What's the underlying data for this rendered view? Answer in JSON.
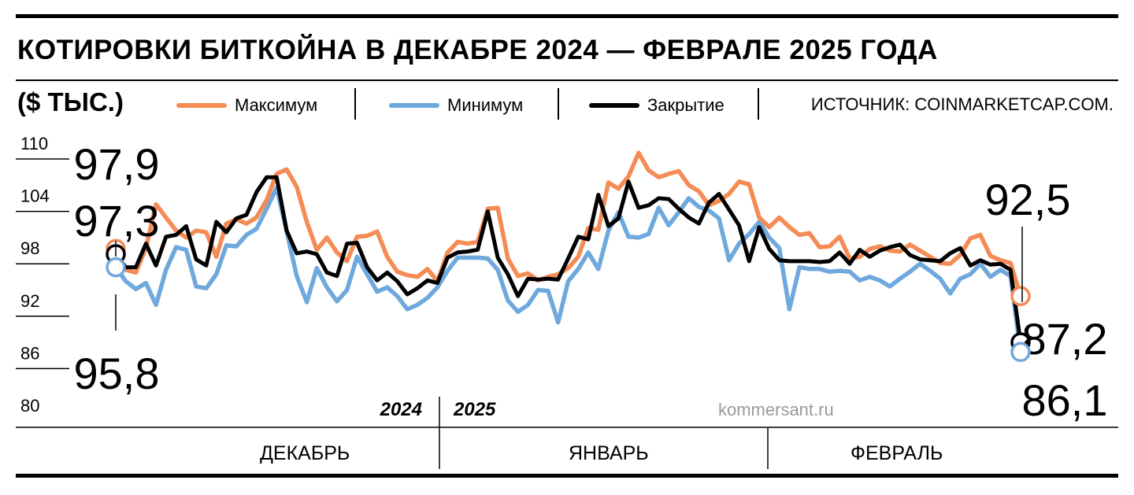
{
  "header": {
    "title": "КОТИРОВКИ БИТКОЙНА В ДЕКАБРЕ 2024 — ФЕВРАЛЕ 2025 ГОДА",
    "unit": "($ ТЫС.)",
    "source": "ИСТОЧНИК: COINMARKETCAP.COM."
  },
  "legend": [
    {
      "label": "Максимум",
      "color": "#f58b55"
    },
    {
      "label": "Минимум",
      "color": "#6fa8dc"
    },
    {
      "label": "Закрытие",
      "color": "#000000"
    }
  ],
  "watermark": "kommersant.ru",
  "years": {
    "left": "2024",
    "right": "2025"
  },
  "months": [
    "ДЕКАБРЬ",
    "ЯНВАРЬ",
    "ФЕВРАЛЬ"
  ],
  "chart_data": {
    "type": "line",
    "ylim": [
      80,
      110
    ],
    "yticks": [
      "110",
      "104",
      "98",
      "92",
      "86",
      "80"
    ],
    "grid": false,
    "legend_position": "top",
    "x_start": "2024-12-01",
    "x_end": "2025-02-24",
    "series": [
      {
        "name": "Максимум",
        "color": "#f58b55",
        "values": [
          97.9,
          95.5,
          95.2,
          98,
          103,
          101.5,
          100,
          99.2,
          100,
          99.8,
          97,
          100.8,
          101.3,
          100.8,
          101.5,
          103.5,
          106.5,
          107,
          105,
          101,
          97.8,
          99.2,
          97.5,
          96.5,
          99.3,
          99.4,
          99.9,
          97,
          95.3,
          94.9,
          94.7,
          95.6,
          94.2,
          97.5,
          98.7,
          98.5,
          98.7,
          102.5,
          102.6,
          96.8,
          94.8,
          95.1,
          94.3,
          94.7,
          95,
          95.7,
          97,
          100.3,
          100.1,
          105.5,
          104.8,
          106.2,
          108.9,
          106.9,
          106.1,
          106.5,
          106.8,
          105.2,
          104.5,
          102.9,
          103.4,
          104.2,
          105.6,
          105.3,
          101.5,
          100.4,
          101.5,
          100.4,
          99.5,
          99.7,
          98.1,
          98.2,
          99.3,
          96.8,
          97,
          97.9,
          98.2,
          97.7,
          97.6,
          98.4,
          97.7,
          97,
          96.3,
          96.2,
          97.2,
          99.1,
          99.5,
          97.1,
          96.6,
          96.3,
          92.5
        ]
      },
      {
        "name": "Минимум",
        "color": "#6fa8dc",
        "values": [
          95.8,
          94.2,
          93.3,
          94,
          91.5,
          95.5,
          98.1,
          97.8,
          93.6,
          93.4,
          95,
          98.3,
          98.2,
          99.5,
          100.2,
          102.5,
          104.9,
          99.9,
          94.8,
          91.8,
          95.7,
          93.5,
          91.9,
          93.2,
          97,
          95,
          93,
          93.5,
          92.5,
          91,
          91.5,
          92.3,
          93.5,
          95.4,
          96.9,
          96.9,
          96.9,
          96.8,
          95.5,
          92,
          90.7,
          91.5,
          93.2,
          93.1,
          89.5,
          94.2,
          95.6,
          97.5,
          95.6,
          100,
          102.1,
          99.3,
          99.2,
          99.6,
          102.6,
          100.6,
          102.1,
          103.7,
          102.7,
          102.3,
          101.4,
          96.6,
          98.5,
          99.6,
          101,
          99.2,
          98,
          91,
          95.8,
          95.6,
          95.6,
          95.3,
          95.4,
          95.3,
          94.3,
          94.7,
          94.3,
          93.6,
          94.5,
          95.3,
          96.2,
          95.4,
          94.5,
          92.8,
          94.5,
          95,
          96.2,
          94.7,
          95.5,
          94.8,
          86.1
        ]
      },
      {
        "name": "Закрытие",
        "color": "#000000",
        "values": [
          97.3,
          95.8,
          95.8,
          98.5,
          96,
          99.3,
          99.5,
          100.5,
          96.7,
          96,
          101,
          99.8,
          101.4,
          101.8,
          104.4,
          106.1,
          106.1,
          100,
          97.4,
          97.6,
          97.3,
          95.2,
          94.8,
          98.5,
          98.6,
          95.8,
          94.3,
          95.2,
          94.2,
          92.7,
          93.4,
          94.3,
          94,
          96.9,
          97.5,
          97.6,
          97.8,
          102.2,
          96.9,
          95,
          92.5,
          94.5,
          94.4,
          94.5,
          94.4,
          96.8,
          99.3,
          99,
          104.1,
          100.5,
          101.4,
          105.6,
          102.6,
          102.9,
          103.7,
          103.6,
          102.5,
          101.5,
          100.8,
          103.2,
          104.2,
          102.4,
          100.6,
          96.5,
          100.4,
          97.9,
          96.6,
          96.5,
          96.5,
          96.5,
          96.4,
          96.5,
          97.5,
          96.2,
          97.8,
          97,
          97.7,
          98.1,
          98.4,
          97.2,
          96.7,
          96.6,
          96.5,
          97.4,
          98,
          96,
          96.6,
          96.1,
          96.2,
          95.5,
          87.2
        ]
      }
    ],
    "annotations": [
      {
        "text": "97,9",
        "series": "Максимум",
        "index": 0
      },
      {
        "text": "97,3",
        "series": "Закрытие",
        "index": 0
      },
      {
        "text": "95,8",
        "series": "Минимум",
        "index": 0
      },
      {
        "text": "92,5",
        "series": "Максимум",
        "index": 90
      },
      {
        "text": "87,2",
        "series": "Закрытие",
        "index": 90
      },
      {
        "text": "86,1",
        "series": "Минимум",
        "index": 90
      }
    ]
  }
}
